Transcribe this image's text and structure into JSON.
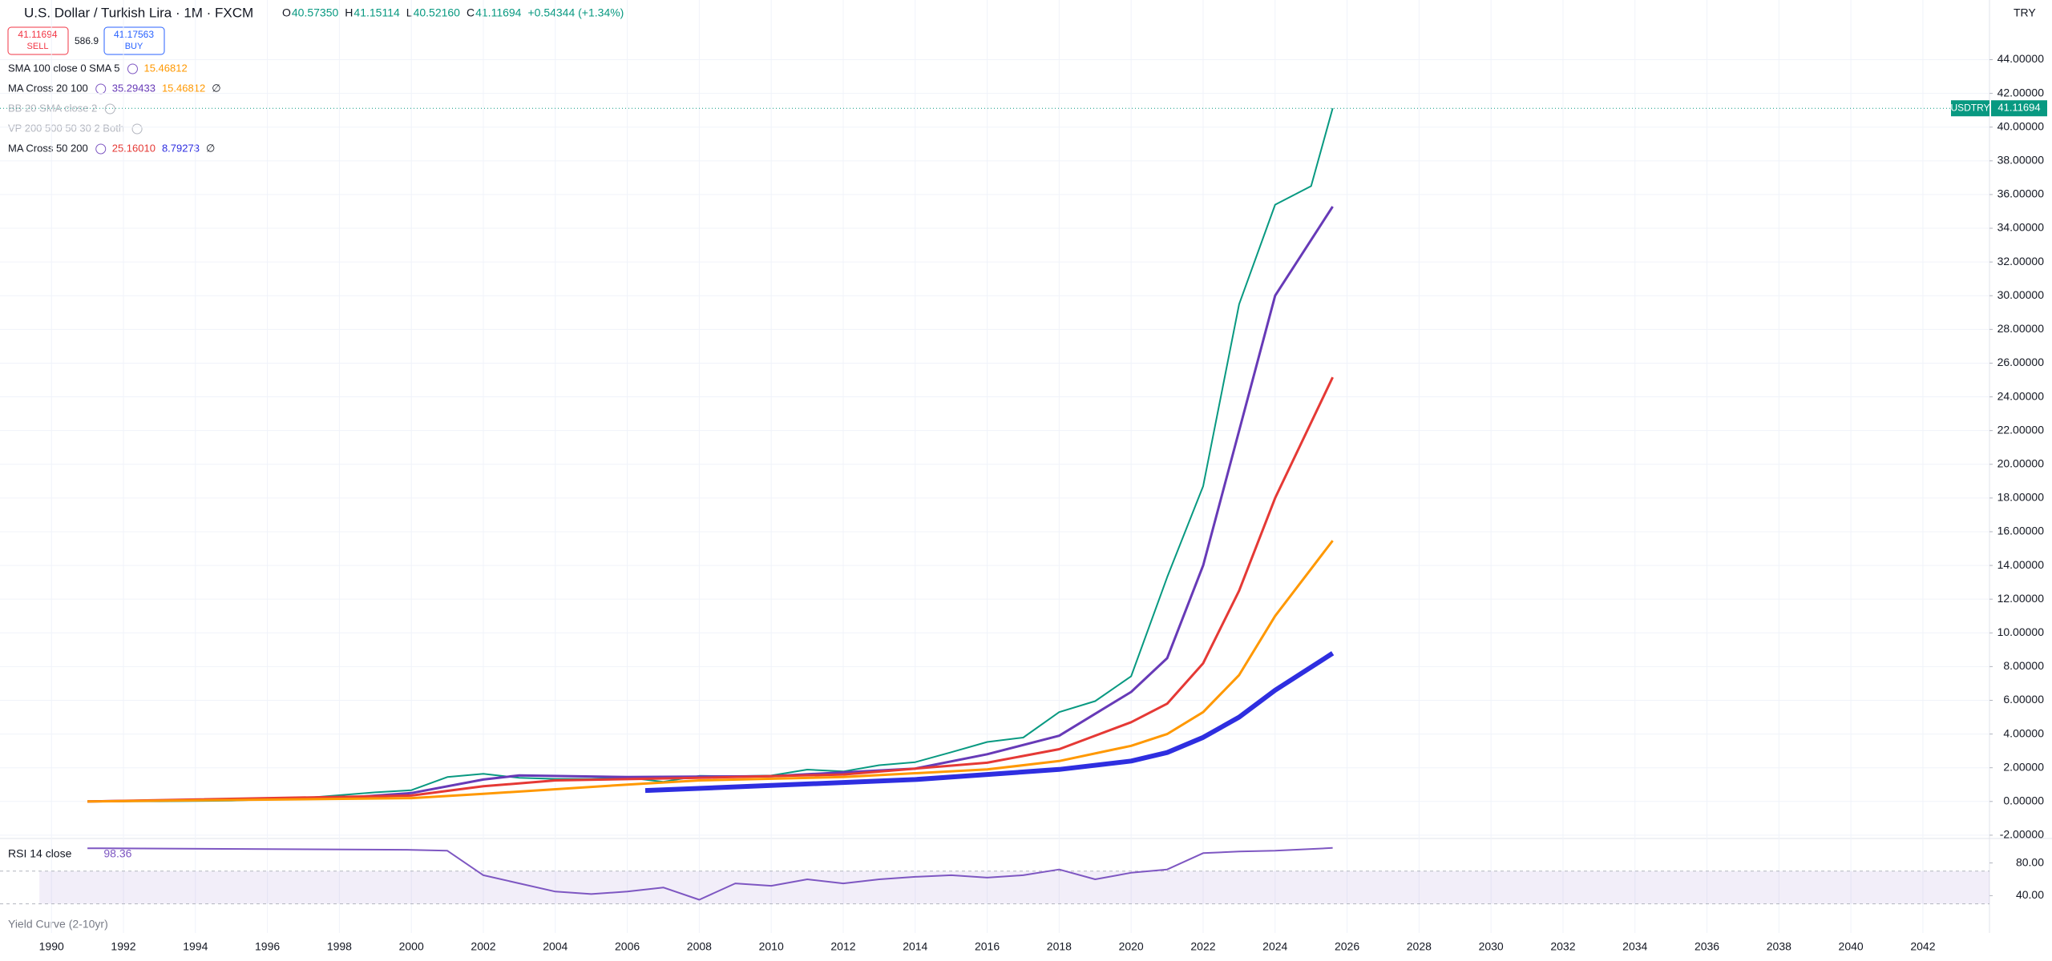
{
  "header": {
    "symbol": "U.S. Dollar / Turkish Lira · 1M · FXCM",
    "ohlc": [
      {
        "label": "O",
        "value": "40.57350"
      },
      {
        "label": "H",
        "value": "41.15114"
      },
      {
        "label": "L",
        "value": "40.52160"
      },
      {
        "label": "C",
        "value": "41.11694"
      }
    ],
    "change": "+0.54344 (+1.34%)",
    "currency": "TRY",
    "sell": {
      "price": "41.11694",
      "label": "SELL"
    },
    "spread": "586.9",
    "buy": {
      "price": "41.17563",
      "label": "BUY"
    }
  },
  "indicators": [
    {
      "name": "SMA 100 close 0 SMA 5",
      "values": [
        "15.46812"
      ]
    },
    {
      "name": "MA Cross 20 100",
      "values": [
        "35.29433",
        "15.46812",
        "∅"
      ]
    },
    {
      "name": "BB 20 SMA close 2"
    },
    {
      "name": "VP 200 500 50 30 2 Both"
    },
    {
      "name": "MA Cross 50 200",
      "values": [
        "25.16010",
        "8.79273",
        "∅"
      ]
    }
  ],
  "lower_indicator": "Yield Curve (2-10yr)",
  "chart_data": [
    {
      "type": "line",
      "symbol": "USDTRY",
      "xlim": [
        1988.57,
        2043.85
      ],
      "xticks": [
        1990,
        1992,
        1994,
        1996,
        1998,
        2000,
        2002,
        2004,
        2006,
        2008,
        2010,
        2012,
        2014,
        2016,
        2018,
        2020,
        2022,
        2024,
        2026,
        2028,
        2030,
        2032,
        2034,
        2036,
        2038,
        2040,
        2042
      ],
      "ylim": [
        -2.1,
        46.4
      ],
      "yticks": [
        {
          "value": -2,
          "label": "-2.00000"
        },
        {
          "value": 0,
          "label": "0.00000"
        },
        {
          "value": 2,
          "label": "2.00000"
        },
        {
          "value": 4,
          "label": "4.00000"
        },
        {
          "value": 6,
          "label": "6.00000"
        },
        {
          "value": 8,
          "label": "8.00000"
        },
        {
          "value": 10,
          "label": "10.00000"
        },
        {
          "value": 12,
          "label": "12.00000"
        },
        {
          "value": 14,
          "label": "14.00000"
        },
        {
          "value": 16,
          "label": "16.00000"
        },
        {
          "value": 18,
          "label": "18.00000"
        },
        {
          "value": 20,
          "label": "20.00000"
        },
        {
          "value": 22,
          "label": "22.00000"
        },
        {
          "value": 24,
          "label": "24.00000"
        },
        {
          "value": 26,
          "label": "26.00000"
        },
        {
          "value": 28,
          "label": "28.00000"
        },
        {
          "value": 30,
          "label": "30.00000"
        },
        {
          "value": 32,
          "label": "32.00000"
        },
        {
          "value": 34,
          "label": "34.00000"
        },
        {
          "value": 36,
          "label": "36.00000"
        },
        {
          "value": 38,
          "label": "38.00000"
        },
        {
          "value": 40,
          "label": "40.00000"
        },
        {
          "value": 42,
          "label": "42.00000"
        },
        {
          "value": 44,
          "label": "44.00000"
        }
      ],
      "grid": true,
      "series": [
        {
          "name": "USDTRY",
          "color": "#089981",
          "width": 2,
          "x": [
            1991,
            1993,
            1995,
            1997,
            1999,
            2000,
            2001,
            2002,
            2003,
            2004,
            2005,
            2006,
            2007,
            2008,
            2009,
            2010,
            2011,
            2012,
            2013,
            2014,
            2015,
            2016,
            2017,
            2018,
            2019,
            2020,
            2021,
            2022,
            2023,
            2024,
            2025,
            2025.6
          ],
          "values": [
            0.004,
            0.011,
            0.045,
            0.2,
            0.54,
            0.67,
            1.45,
            1.64,
            1.4,
            1.34,
            1.34,
            1.42,
            1.17,
            1.52,
            1.5,
            1.54,
            1.89,
            1.78,
            2.15,
            2.33,
            2.92,
            3.53,
            3.79,
            5.3,
            5.95,
            7.43,
            13.3,
            18.7,
            29.5,
            35.4,
            36.5,
            41.11694
          ]
        },
        {
          "name": "MA 20",
          "color": "#673ab7",
          "width": 3,
          "x": [
            1991,
            1998,
            2000,
            2002,
            2003,
            2006,
            2010,
            2014,
            2016,
            2018,
            2019,
            2020,
            2021,
            2022,
            2023,
            2024,
            2025.6
          ],
          "values": [
            0,
            0.2,
            0.5,
            1.3,
            1.55,
            1.45,
            1.5,
            1.95,
            2.8,
            3.9,
            5.2,
            6.5,
            8.5,
            14,
            22,
            30,
            35.29
          ]
        },
        {
          "name": "MA 50",
          "color": "#e53935",
          "width": 3,
          "x": [
            1991,
            2000,
            2002,
            2004,
            2008,
            2012,
            2016,
            2018,
            2020,
            2021,
            2022,
            2023,
            2024,
            2025.6
          ],
          "values": [
            0,
            0.35,
            0.9,
            1.25,
            1.4,
            1.6,
            2.3,
            3.1,
            4.7,
            5.8,
            8.2,
            12.5,
            18,
            25.16
          ]
        },
        {
          "name": "SMA 100",
          "color": "#ff9800",
          "width": 3,
          "x": [
            1991,
            2000,
            2002,
            2006,
            2008,
            2012,
            2016,
            2018,
            2020,
            2021,
            2022,
            2023,
            2024,
            2025.6
          ],
          "values": [
            0,
            0.2,
            0.45,
            1.0,
            1.25,
            1.45,
            1.9,
            2.4,
            3.3,
            4.0,
            5.3,
            7.5,
            11,
            15.47
          ]
        },
        {
          "name": "MA 200",
          "color": "#2e2ee0",
          "width": 6,
          "x": [
            2006.5,
            2010,
            2014,
            2018,
            2020,
            2021,
            2022,
            2023,
            2024,
            2025.6
          ],
          "values": [
            0.65,
            0.95,
            1.3,
            1.9,
            2.4,
            2.9,
            3.8,
            5.0,
            6.6,
            8.79
          ]
        }
      ]
    },
    {
      "type": "line",
      "name": "RSI 14 close",
      "xlim": [
        1988.57,
        2043.85
      ],
      "ylim": [
        20.8,
        107
      ],
      "yticks": [
        {
          "value": 40,
          "label": "40.00"
        },
        {
          "value": 80,
          "label": "80.00"
        }
      ],
      "band": [
        30,
        70
      ],
      "series": [
        {
          "name": "RSI",
          "color": "#7e57c2",
          "width": 2,
          "x": [
            1991,
            2000,
            2001,
            2002,
            2003,
            2004,
            2005,
            2006,
            2007,
            2008,
            2009,
            2010,
            2011,
            2012,
            2013,
            2014,
            2015,
            2016,
            2017,
            2018,
            2019,
            2020,
            2021,
            2022,
            2023,
            2024,
            2025.6
          ],
          "values": [
            98,
            96,
            95,
            65,
            55,
            45,
            42,
            45,
            50,
            35,
            55,
            52,
            60,
            55,
            60,
            63,
            65,
            62,
            65,
            72,
            60,
            68,
            72,
            92,
            94,
            95,
            98.36
          ]
        }
      ]
    }
  ]
}
